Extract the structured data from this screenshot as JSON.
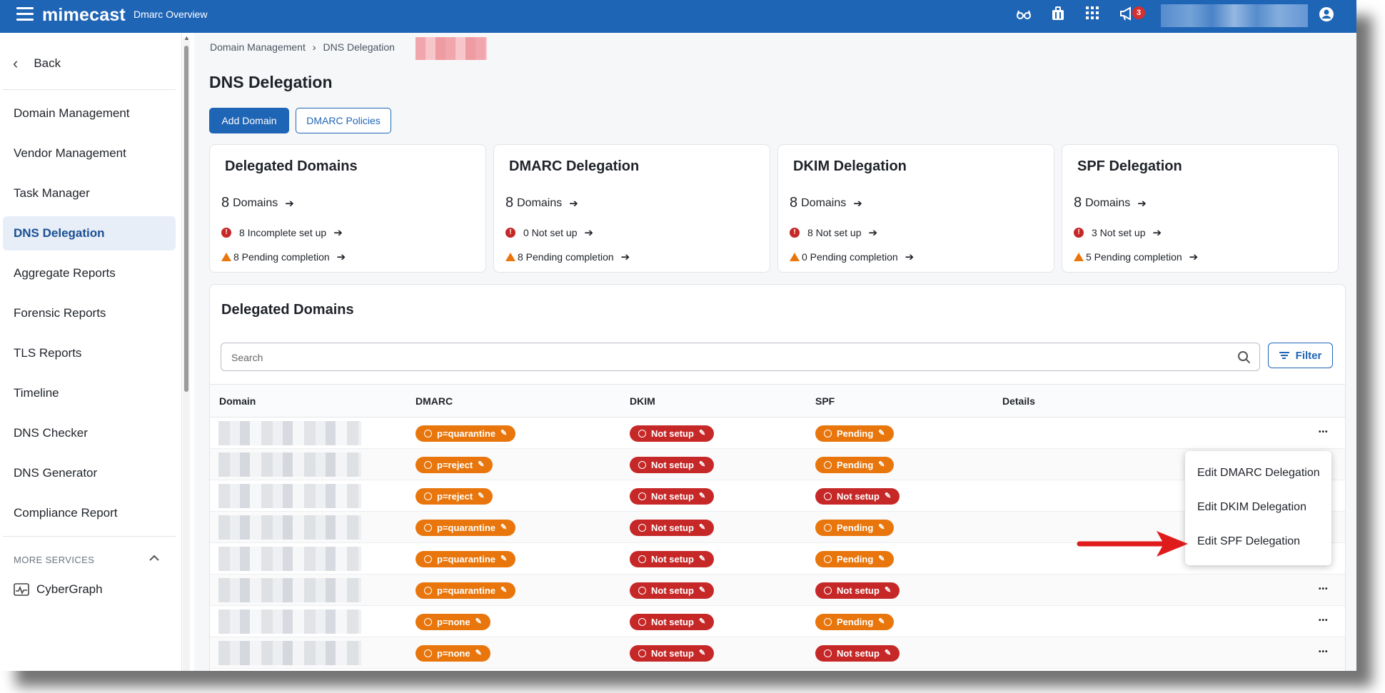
{
  "header": {
    "brand": "mimecast",
    "app_title": "Dmarc Overview",
    "notification_count": "3",
    "icons": [
      "glasses-icon",
      "briefcase-icon",
      "apps-grid-icon",
      "megaphone-icon",
      "user-account-icon"
    ]
  },
  "sidebar": {
    "back_label": "Back",
    "items": [
      {
        "label": "Domain Management"
      },
      {
        "label": "Vendor Management"
      },
      {
        "label": "Task Manager"
      },
      {
        "label": "DNS Delegation",
        "active": true
      },
      {
        "label": "Aggregate Reports"
      },
      {
        "label": "Forensic Reports"
      },
      {
        "label": "TLS Reports"
      },
      {
        "label": "Timeline"
      },
      {
        "label": "DNS Checker"
      },
      {
        "label": "DNS Generator"
      },
      {
        "label": "Compliance Report"
      }
    ],
    "more_services_label": "MORE SERVICES",
    "more_services_items": [
      {
        "label": "CyberGraph"
      }
    ]
  },
  "breadcrumb": {
    "root": "Domain Management",
    "current": "DNS Delegation"
  },
  "page": {
    "title": "DNS Delegation",
    "add_domain_label": "Add Domain",
    "dmarc_policies_label": "DMARC Policies"
  },
  "cards": [
    {
      "title": "Delegated Domains",
      "count": "8",
      "count_unit": "Domains",
      "line1": "8 Incomplete set up",
      "line2": "8 Pending completion"
    },
    {
      "title": "DMARC Delegation",
      "count": "8",
      "count_unit": "Domains",
      "line1": "0 Not set up",
      "line2": "8 Pending completion"
    },
    {
      "title": "DKIM Delegation",
      "count": "8",
      "count_unit": "Domains",
      "line1": "8 Not set up",
      "line2": "0 Pending completion"
    },
    {
      "title": "SPF Delegation",
      "count": "8",
      "count_unit": "Domains",
      "line1": "3 Not set up",
      "line2": "5 Pending completion"
    }
  ],
  "table": {
    "title": "Delegated Domains",
    "search_placeholder": "Search",
    "filter_label": "Filter",
    "columns": [
      "Domain",
      "DMARC",
      "DKIM",
      "SPF",
      "Details"
    ],
    "rows": [
      {
        "dmarc": "p=quarantine",
        "dkim": "Not setup",
        "spf": "Pending"
      },
      {
        "dmarc": "p=reject",
        "dkim": "Not setup",
        "spf": "Pending"
      },
      {
        "dmarc": "p=reject",
        "dkim": "Not setup",
        "spf": "Not setup"
      },
      {
        "dmarc": "p=quarantine",
        "dkim": "Not setup",
        "spf": "Pending"
      },
      {
        "dmarc": "p=quarantine",
        "dkim": "Not setup",
        "spf": "Pending"
      },
      {
        "dmarc": "p=quarantine",
        "dkim": "Not setup",
        "spf": "Not setup"
      },
      {
        "dmarc": "p=none",
        "dkim": "Not setup",
        "spf": "Pending"
      },
      {
        "dmarc": "p=none",
        "dkim": "Not setup",
        "spf": "Not setup"
      }
    ]
  },
  "context_menu": {
    "items": [
      "Edit DMARC Delegation",
      "Edit DKIM Delegation",
      "Edit SPF Delegation"
    ]
  },
  "colors": {
    "brand_blue": "#1f65b6",
    "pending_orange": "#e8760c",
    "error_red": "#c62828",
    "annotation_red": "#e01b1b"
  }
}
